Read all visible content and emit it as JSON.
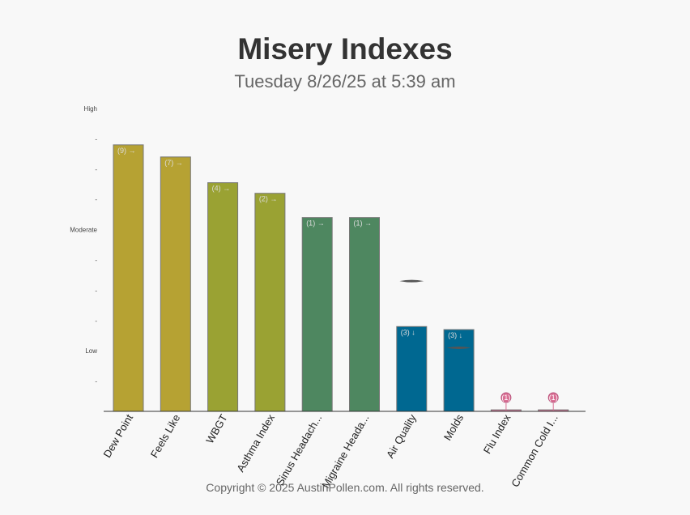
{
  "header": {
    "title": "Misery Indexes",
    "subtitle": "Tuesday 8/26/25 at 5:39 am"
  },
  "chart_data": {
    "type": "bar",
    "xlabel": "",
    "ylabel": "",
    "ylim": [
      0,
      10
    ],
    "y_ticks": [
      {
        "value": 10,
        "label": "High"
      },
      {
        "value": 9,
        "label": "-"
      },
      {
        "value": 8,
        "label": "-"
      },
      {
        "value": 7,
        "label": "-"
      },
      {
        "value": 6,
        "label": "Moderate"
      },
      {
        "value": 5,
        "label": "-"
      },
      {
        "value": 4,
        "label": "-"
      },
      {
        "value": 3,
        "label": "-"
      },
      {
        "value": 2,
        "label": "Low"
      },
      {
        "value": 1,
        "label": "-"
      }
    ],
    "categories": [
      "Dew Point",
      "Feels Like",
      "WBGT",
      "Asthma Index",
      "Sinus Headach...",
      "Migraine Heada...",
      "Air Quality",
      "Molds",
      "Flu Index",
      "Common Cold I..."
    ],
    "values": [
      8.8,
      8.4,
      7.55,
      7.2,
      6.4,
      6.4,
      2.8,
      2.7,
      0.05,
      0.05
    ],
    "bar_labels": [
      "(9) →",
      "(7) →",
      "(4) →",
      "(2) →",
      "(1) →",
      "(1) →",
      "(3) ↓",
      "(3) ↓",
      "(1)",
      "(1)"
    ],
    "colors": [
      "#b6a233",
      "#b6a233",
      "#9aa233",
      "#9aa233",
      "#4e8760",
      "#4e8760",
      "#006891",
      "#006891",
      "#d96f94",
      "#d96f94"
    ],
    "markers": [
      null,
      null,
      null,
      null,
      null,
      null,
      4.3,
      2.1,
      null,
      null
    ],
    "grid": false,
    "legend": "none"
  },
  "footer": {
    "copyright": "Copyright © 2025 AustinPollen.com.  All rights reserved."
  }
}
